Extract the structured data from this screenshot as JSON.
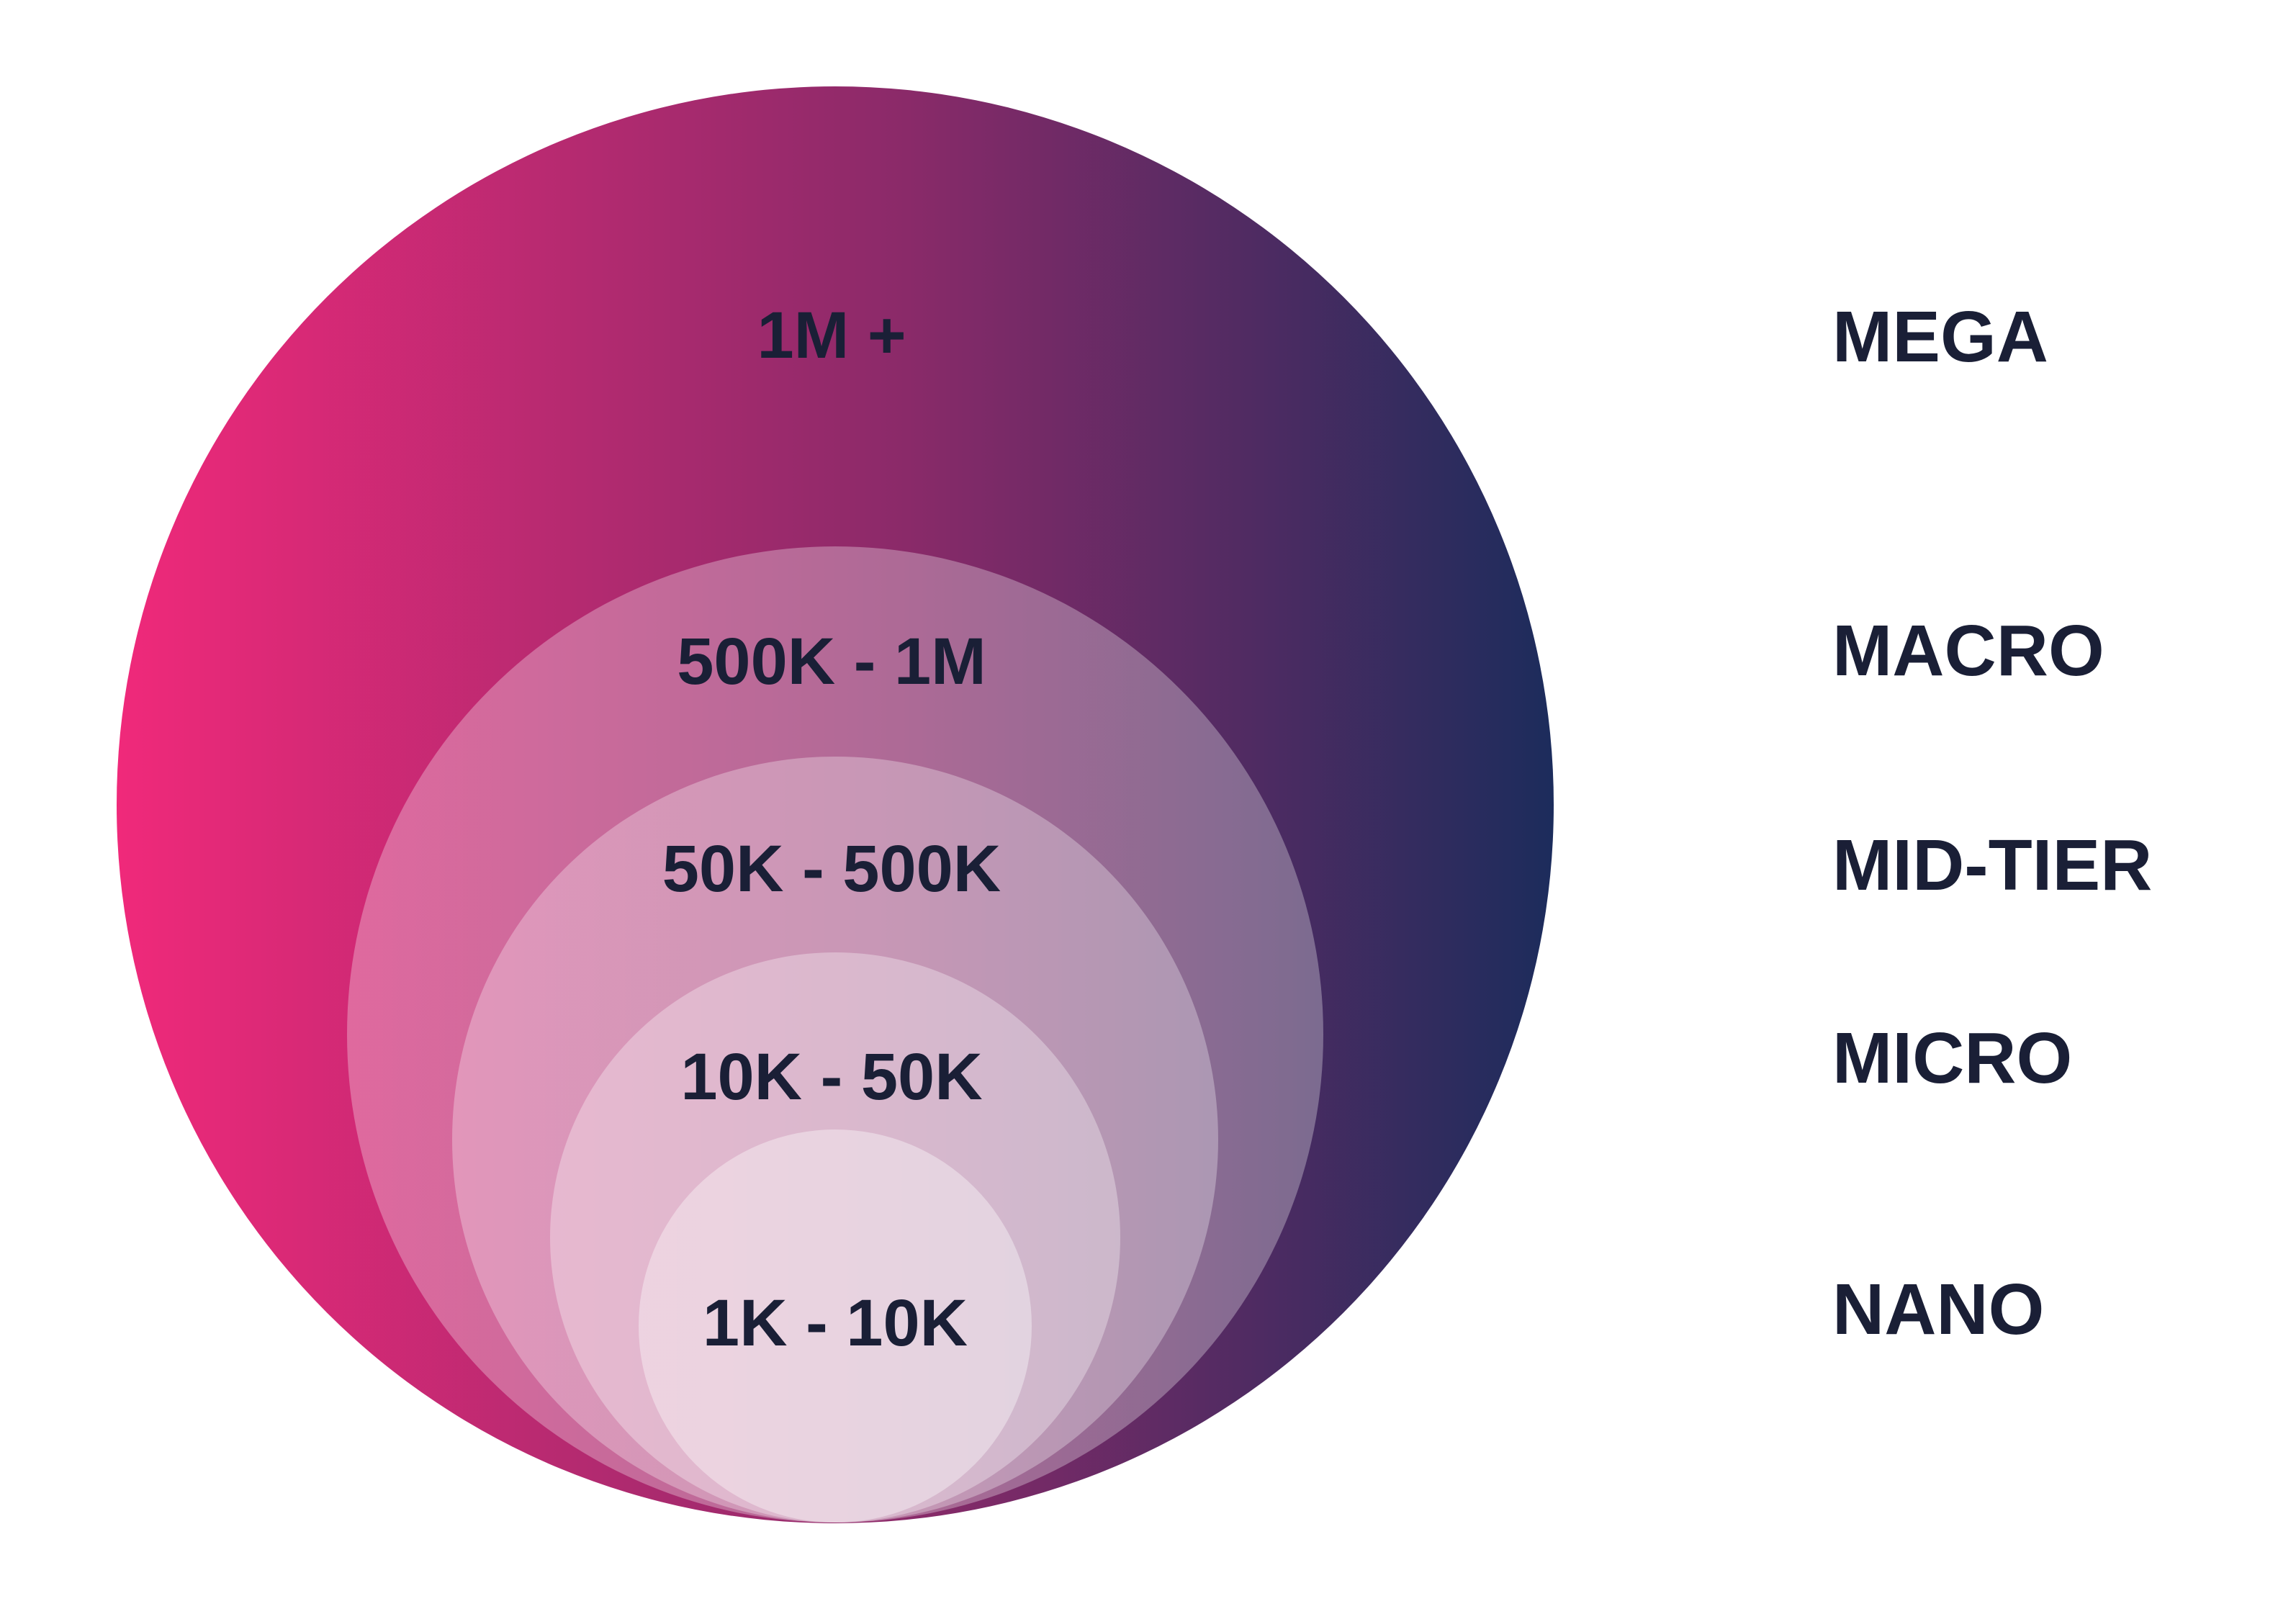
{
  "colors": {
    "gradient_left": "#f0297a",
    "gradient_mid": "#8a2a69",
    "gradient_right": "#1c2c5c",
    "connector_start": "#f7c417",
    "connector_end": "#ef7d1a",
    "text": "#1a1f36",
    "background": "#ffffff"
  },
  "tiers": [
    {
      "range": "1M +",
      "name": "MEGA"
    },
    {
      "range": "500K - 1M",
      "name": "MACRO"
    },
    {
      "range": "50K - 500K",
      "name": "MID-TIER"
    },
    {
      "range": "10K - 50K",
      "name": "MICRO"
    },
    {
      "range": "1K - 10K",
      "name": "NANO"
    }
  ]
}
